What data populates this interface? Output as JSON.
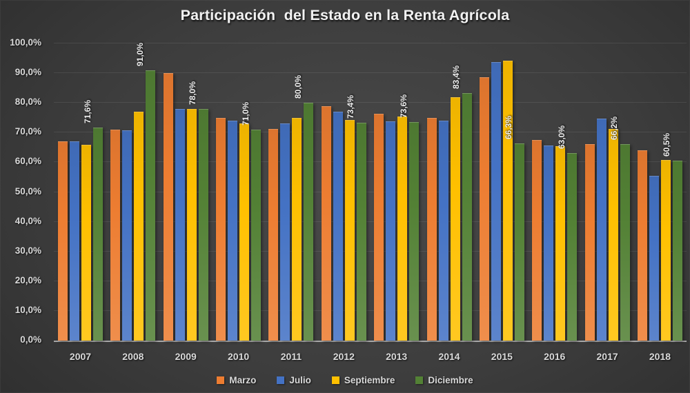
{
  "chart_data": {
    "type": "bar",
    "title": "Participación  del Estado en la Renta Agrícola",
    "xlabel": "",
    "ylabel": "",
    "ylim": [
      0,
      100
    ],
    "grid": true,
    "legend_position": "bottom",
    "background_color": "#3d3d3d",
    "axis_text_color": "#d9d9d9",
    "categories": [
      "2007",
      "2008",
      "2009",
      "2010",
      "2011",
      "2012",
      "2013",
      "2014",
      "2015",
      "2016",
      "2017",
      "2018"
    ],
    "y_ticks": [
      {
        "value": 100,
        "label": "100,0%"
      },
      {
        "value": 90,
        "label": "90,0%"
      },
      {
        "value": 80,
        "label": "80,0%"
      },
      {
        "value": 70,
        "label": "70,0%"
      },
      {
        "value": 60,
        "label": "60,0%"
      },
      {
        "value": 50,
        "label": "50,0%"
      },
      {
        "value": 40,
        "label": "40,0%"
      },
      {
        "value": 30,
        "label": "30,0%"
      },
      {
        "value": 20,
        "label": "20,0%"
      },
      {
        "value": 10,
        "label": "10,0%"
      },
      {
        "value": 0,
        "label": "0,0%"
      }
    ],
    "series": [
      {
        "name": "Marzo",
        "color": "#ED7D31",
        "values": [
          67.0,
          71.0,
          90.0,
          75.0,
          71.3,
          79.0,
          76.3,
          75.0,
          88.7,
          67.5,
          66.2,
          64.0
        ]
      },
      {
        "name": "Julio",
        "color": "#4472C4",
        "values": [
          67.0,
          70.8,
          78.0,
          74.0,
          73.0,
          77.0,
          73.8,
          74.0,
          93.7,
          65.6,
          74.7,
          55.5
        ]
      },
      {
        "name": "Septiembre",
        "color": "#FFC000",
        "values": [
          66.0,
          77.0,
          78.0,
          73.0,
          75.0,
          74.2,
          75.4,
          81.8,
          94.3,
          65.4,
          71.2,
          60.7
        ]
      },
      {
        "name": "Diciembre",
        "color": "#538135",
        "values": [
          71.6,
          91.0,
          78.0,
          71.0,
          80.0,
          73.4,
          73.6,
          83.4,
          66.3,
          63.0,
          66.2,
          60.5
        ],
        "data_labels": [
          "71,6%",
          "91,0%",
          "78,0%",
          "71,0%",
          "80,0%",
          "73,4%",
          "73,6%",
          "83,4%",
          "66,3%",
          "63,0%",
          "66,2%",
          "60,5%"
        ]
      }
    ]
  }
}
